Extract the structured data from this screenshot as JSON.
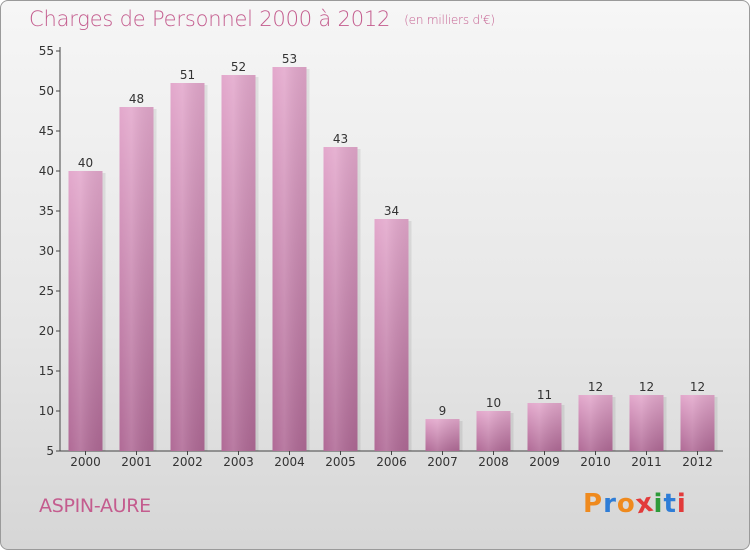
{
  "header": {
    "title": "Charges de Personnel 2000 à 2012",
    "subtitle": "(en milliers d'€)"
  },
  "footer": {
    "location": "ASPIN-AURE",
    "logo_text": "Proxiti"
  },
  "colors": {
    "accent": "#c45c8e",
    "bar_top": "#e3a8cc",
    "bar_bottom": "#b06a96",
    "axis": "#444444",
    "logo_letters": [
      "#ef8a1e",
      "#2e7dd7",
      "#ef8a1e",
      "#e23a3a",
      "#2e9b3a",
      "#2e7dd7",
      "#e23a3a"
    ]
  },
  "chart_data": {
    "type": "bar",
    "title": "Charges de Personnel 2000 à 2012",
    "subtitle": "(en milliers d'€)",
    "categories": [
      "2000",
      "2001",
      "2002",
      "2003",
      "2004",
      "2005",
      "2006",
      "2007",
      "2008",
      "2009",
      "2010",
      "2011",
      "2012"
    ],
    "values": [
      40,
      48,
      51,
      52,
      53,
      43,
      34,
      9,
      10,
      11,
      12,
      12,
      12
    ],
    "ylim": [
      5,
      55
    ],
    "yticks": [
      5,
      10,
      15,
      20,
      25,
      30,
      35,
      40,
      45,
      50,
      55
    ],
    "grid": false,
    "xlabel": "",
    "ylabel": ""
  }
}
